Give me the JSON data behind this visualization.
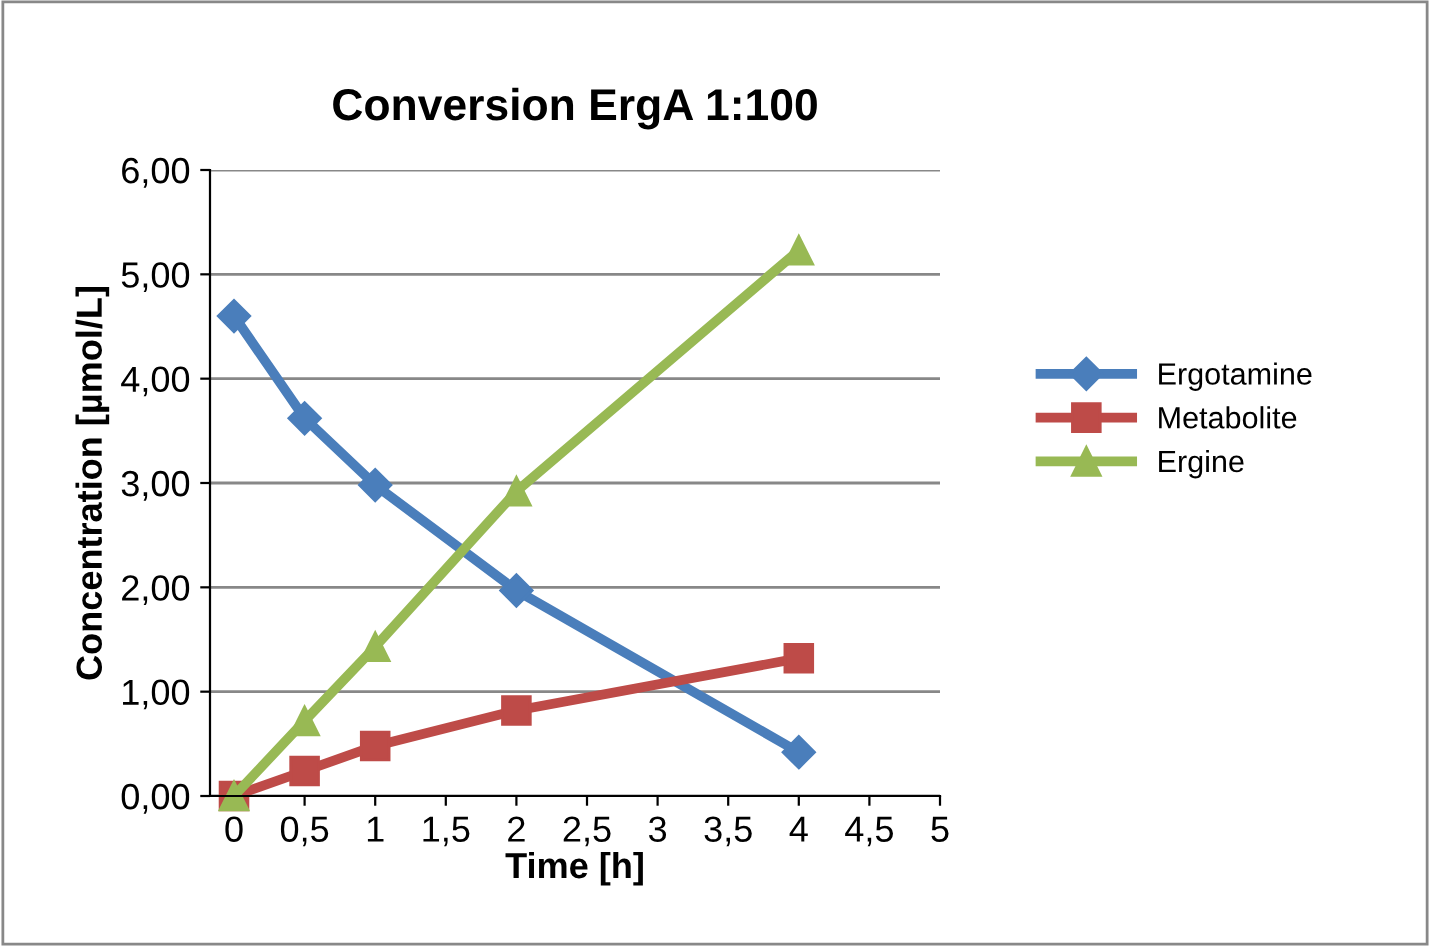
{
  "chart_data": {
    "type": "line",
    "title": "Conversion ErgA 1:100",
    "xlabel": "Time [h]",
    "ylabel": "Concentration [µmol/L]",
    "x": [
      0,
      0.5,
      1,
      2,
      4
    ],
    "series": [
      {
        "name": "Ergotamine",
        "color": "#4a7ebb",
        "marker": "diamond",
        "values": [
          4.6,
          3.62,
          2.98,
          1.97,
          0.42
        ]
      },
      {
        "name": "Metabolite",
        "color": "#be4b48",
        "marker": "square",
        "values": [
          0,
          0.24,
          0.48,
          0.82,
          1.32
        ]
      },
      {
        "name": "Ergine",
        "color": "#98b954",
        "marker": "triangle",
        "values": [
          0,
          0.72,
          1.43,
          2.92,
          5.23
        ]
      }
    ],
    "xlim": [
      -0.17,
      5
    ],
    "xticks": [
      0,
      {
        "value": 0.5,
        "label": "0,5"
      },
      1,
      {
        "value": 1.5,
        "label": "1,5"
      },
      2,
      {
        "value": 2.5,
        "label": "2,5"
      },
      3,
      {
        "value": 3.5,
        "label": "3,5"
      },
      4,
      {
        "value": 4.5,
        "label": "4,5"
      },
      5
    ],
    "ylim": [
      0,
      6
    ],
    "yticks": [
      {
        "value": 0,
        "label": "0,00"
      },
      {
        "value": 1,
        "label": "1,00"
      },
      {
        "value": 2,
        "label": "2,00"
      },
      {
        "value": 3,
        "label": "3,00"
      },
      {
        "value": 4,
        "label": "4,00"
      },
      {
        "value": 5,
        "label": "5,00"
      },
      {
        "value": 6,
        "label": "6,00"
      }
    ],
    "grid": "y",
    "legend": "right",
    "line_style": "solid"
  }
}
